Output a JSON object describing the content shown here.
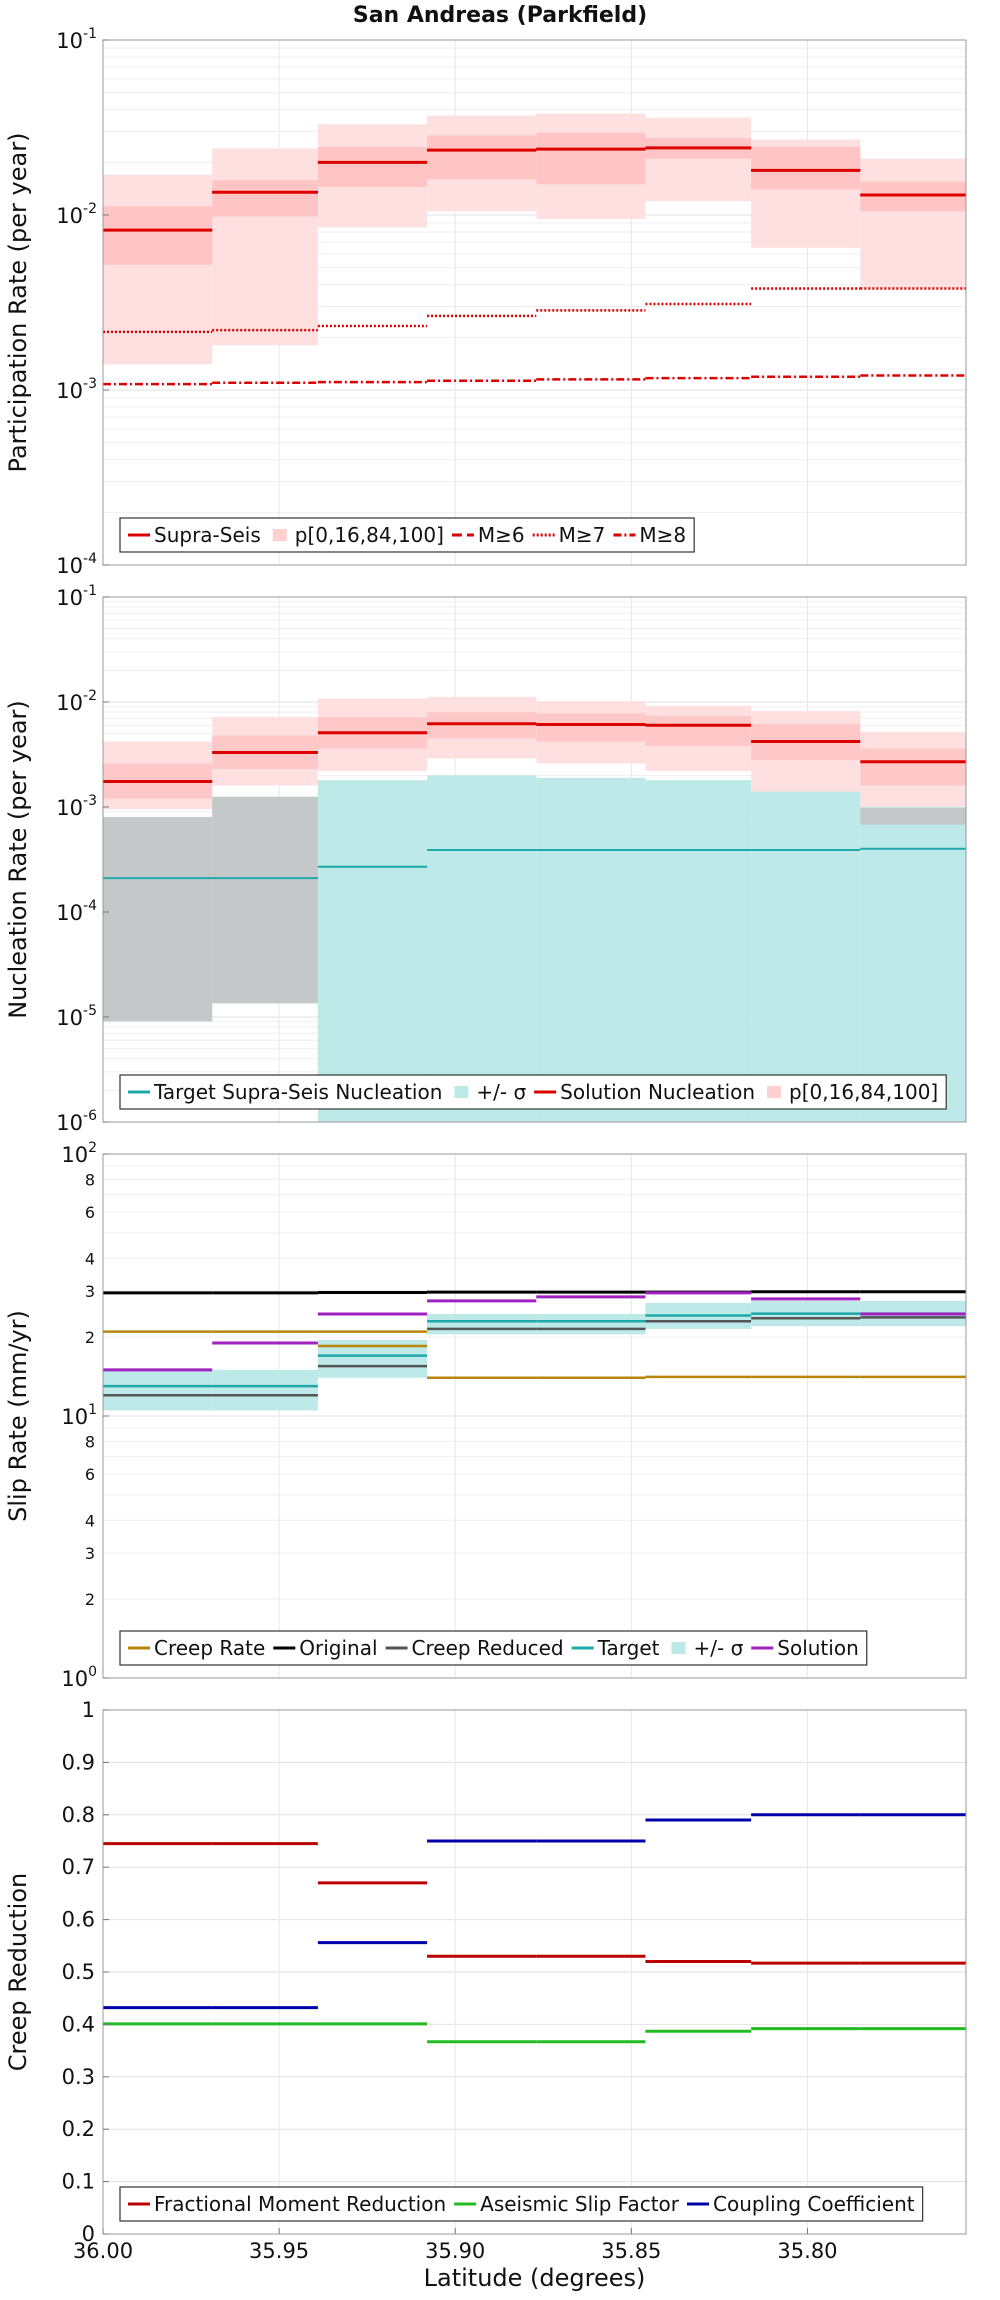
{
  "figure_title": "San Andreas (Parkfield)",
  "chart_data": [
    {
      "type": "step-line",
      "ylabel": "Participation Rate (per year)",
      "yscale": "log",
      "ylim": [
        0.0001,
        0.1
      ],
      "ytick_labels": [
        {
          "base": "10",
          "exp": "-1"
        },
        {
          "base": "10",
          "exp": "-2"
        },
        {
          "base": "10",
          "exp": "-3"
        },
        {
          "base": "10",
          "exp": "-4"
        }
      ],
      "xlim": [
        36.0,
        35.755
      ],
      "x_edges": [
        36.0,
        35.969,
        35.939,
        35.908,
        35.877,
        35.846,
        35.816,
        35.785,
        35.755
      ],
      "bands": [
        {
          "name": "p0-100",
          "color": "#ffe0e0",
          "lo": [
            0.0014,
            0.0018,
            0.0085,
            0.0105,
            0.0095,
            0.012,
            0.0065,
            0.0038
          ],
          "hi": [
            0.017,
            0.024,
            0.033,
            0.037,
            0.038,
            0.036,
            0.027,
            0.021
          ]
        },
        {
          "name": "p16-84",
          "color": "#ffc4c4",
          "lo": [
            0.0052,
            0.0098,
            0.0145,
            0.016,
            0.015,
            0.021,
            0.014,
            0.0105
          ],
          "hi": [
            0.0112,
            0.0158,
            0.0245,
            0.0285,
            0.0295,
            0.0275,
            0.0245,
            0.0155
          ]
        }
      ],
      "series": [
        {
          "name": "Supra-Seis",
          "color": "#dd0000",
          "dash": "",
          "width": 3,
          "values": [
            0.0082,
            0.0135,
            0.02,
            0.0235,
            0.0238,
            0.0242,
            0.018,
            0.013
          ]
        },
        {
          "name": "M≥6",
          "color": "#dd0000",
          "dash": "10,5",
          "width": 2,
          "values": [
            0.0082,
            0.0135,
            0.02,
            0.0235,
            0.0238,
            0.0242,
            0.018,
            0.013
          ]
        },
        {
          "name": "M≥7",
          "color": "#dd0000",
          "dash": "2,2",
          "width": 2.5,
          "values": [
            0.00215,
            0.0022,
            0.00232,
            0.00265,
            0.00285,
            0.0031,
            0.0038,
            0.0038
          ]
        },
        {
          "name": "M≥8",
          "color": "#dd0000",
          "dash": "8,3,2,3",
          "width": 2.5,
          "values": [
            0.00108,
            0.0011,
            0.00111,
            0.00113,
            0.00115,
            0.00117,
            0.00119,
            0.00121
          ]
        }
      ],
      "legend": [
        {
          "label": "Supra-Seis",
          "kind": "line",
          "color": "#dd0000",
          "dash": ""
        },
        {
          "label": "p[0,16,84,100]",
          "kind": "box",
          "color": "#ffd0d0",
          "dash": ""
        },
        {
          "label": "M≥6",
          "kind": "line",
          "color": "#dd0000",
          "dash": "10,5"
        },
        {
          "label": "M≥7",
          "kind": "line",
          "color": "#dd0000",
          "dash": "2,2"
        },
        {
          "label": "M≥8",
          "kind": "line",
          "color": "#dd0000",
          "dash": "8,3,2,3"
        }
      ]
    },
    {
      "type": "step-line",
      "ylabel": "Nucleation Rate (per year)",
      "yscale": "log",
      "ylim": [
        1e-06,
        0.1
      ],
      "ytick_labels": [
        {
          "base": "10",
          "exp": "-1"
        },
        {
          "base": "10",
          "exp": "-2"
        },
        {
          "base": "10",
          "exp": "-3"
        },
        {
          "base": "10",
          "exp": "-4"
        },
        {
          "base": "10",
          "exp": "-5"
        },
        {
          "base": "10",
          "exp": "-6"
        }
      ],
      "xlim": [
        36.0,
        35.755
      ],
      "x_edges": [
        36.0,
        35.969,
        35.939,
        35.908,
        35.877,
        35.846,
        35.816,
        35.785,
        35.755
      ],
      "bands": [
        {
          "name": "p0-100",
          "color": "#ffe0e0",
          "lo": [
            0.00095,
            0.0016,
            0.0022,
            0.0029,
            0.0026,
            0.0022,
            0.0012,
            0.0007
          ],
          "hi": [
            0.0042,
            0.0072,
            0.0108,
            0.0112,
            0.0102,
            0.0092,
            0.0082,
            0.0052
          ]
        },
        {
          "name": "p16-84",
          "color": "#ffc8c8",
          "lo": [
            0.0012,
            0.0023,
            0.0036,
            0.0045,
            0.0042,
            0.0038,
            0.0028,
            0.0016
          ],
          "hi": [
            0.0026,
            0.0048,
            0.0072,
            0.008,
            0.0078,
            0.0074,
            0.0062,
            0.0036
          ]
        },
        {
          "name": "+/- σ",
          "color": "#bde9e9",
          "lo": [
            9.1e-06,
            1.35e-05,
            1e-06,
            1e-06,
            1e-06,
            1e-06,
            1e-06,
            1e-06
          ],
          "hi": [
            0.0008,
            0.00125,
            0.0018,
            0.002,
            0.0019,
            0.0018,
            0.0014,
            0.001
          ]
        },
        {
          "name": "grey",
          "color": "#c4c8c8",
          "lo": [
            9.1e-06,
            1.35e-05,
            0.0018,
            0.002,
            0.0019,
            0.0018,
            0.0014,
            0.00068
          ],
          "hi": [
            0.0008,
            0.00125,
            0.0018,
            0.002,
            0.0019,
            0.0018,
            0.0014,
            0.00098
          ]
        }
      ],
      "series": [
        {
          "name": "Target Supra-Seis Nucleation",
          "color": "#1fa8a8",
          "dash": "",
          "width": 2,
          "values": [
            0.00021,
            0.00021,
            0.00027,
            0.00039,
            0.00039,
            0.00039,
            0.00039,
            0.0004
          ]
        },
        {
          "name": "Solution Nucleation",
          "color": "#dd0000",
          "dash": "",
          "width": 3,
          "values": [
            0.00175,
            0.0033,
            0.0051,
            0.0062,
            0.0061,
            0.006,
            0.0042,
            0.0027
          ]
        }
      ],
      "legend": [
        {
          "label": "Target Supra-Seis Nucleation",
          "kind": "line",
          "color": "#1fa8a8",
          "dash": ""
        },
        {
          "label": "+/- σ",
          "kind": "box",
          "color": "#bde9e9",
          "dash": ""
        },
        {
          "label": "Solution Nucleation",
          "kind": "line",
          "color": "#dd0000",
          "dash": ""
        },
        {
          "label": "p[0,16,84,100]",
          "kind": "box",
          "color": "#ffd0d0",
          "dash": ""
        }
      ]
    },
    {
      "type": "step-line",
      "ylabel": "Slip Rate (mm/yr)",
      "yscale": "log",
      "ylim": [
        1,
        100
      ],
      "ytick_labels": [
        {
          "base": "10",
          "exp": "2"
        },
        {
          "base": "10",
          "exp": "1"
        },
        {
          "base": "10",
          "exp": "0"
        }
      ],
      "minor_tick_labels": [
        {
          "value": 80,
          "label": "8"
        },
        {
          "value": 60,
          "label": "6"
        },
        {
          "value": 40,
          "label": "4"
        },
        {
          "value": 30,
          "label": "3"
        },
        {
          "value": 20,
          "label": "2"
        },
        {
          "value": 8,
          "label": "8"
        },
        {
          "value": 6,
          "label": "6"
        },
        {
          "value": 4,
          "label": "4"
        },
        {
          "value": 3,
          "label": "3"
        },
        {
          "value": 2,
          "label": "2"
        }
      ],
      "xlim": [
        36.0,
        35.755
      ],
      "x_edges": [
        36.0,
        35.969,
        35.939,
        35.908,
        35.877,
        35.846,
        35.816,
        35.785,
        35.755
      ],
      "bands": [
        {
          "name": "+/- σ",
          "color": "#bde9e9",
          "lo": [
            10.5,
            10.5,
            14.0,
            20.5,
            20.5,
            21.5,
            22.0,
            22.0
          ],
          "hi": [
            15.0,
            15.0,
            19.5,
            24.5,
            24.5,
            27.0,
            27.5,
            27.5
          ]
        }
      ],
      "series": [
        {
          "name": "Creep Rate",
          "color": "#b8860b",
          "dash": "",
          "width": 2.5,
          "values": [
            21.0,
            21.0,
            21.0,
            14.0,
            14.0,
            14.1,
            14.1,
            14.1
          ]
        },
        {
          "name": "Original",
          "color": "#000000",
          "dash": "",
          "width": 3,
          "values": [
            29.5,
            29.5,
            29.6,
            29.7,
            29.7,
            29.7,
            29.8,
            29.8
          ]
        },
        {
          "name": "Creep Reduced",
          "color": "#555555",
          "dash": "",
          "width": 2.5,
          "values": [
            12.0,
            12.0,
            15.5,
            21.5,
            21.5,
            23.0,
            23.6,
            23.8
          ]
        },
        {
          "name": "Target",
          "color": "#1fa8a8",
          "dash": "",
          "width": 2.5,
          "values": [
            13.0,
            13.0,
            17.0,
            23.0,
            23.0,
            24.2,
            24.6,
            24.6
          ]
        },
        {
          "name": "Solution",
          "color": "#a020c0",
          "dash": "",
          "width": 3,
          "values": [
            15.0,
            19.0,
            24.5,
            27.5,
            28.5,
            29.5,
            28.0,
            24.5
          ]
        },
        {
          "name": "Orange2",
          "color": "#b8860b",
          "dash": "",
          "width": 2.5,
          "values": [
            null,
            null,
            18.5,
            null,
            null,
            null,
            null,
            null
          ]
        }
      ],
      "legend": [
        {
          "label": "Creep Rate",
          "kind": "line",
          "color": "#b8860b",
          "dash": ""
        },
        {
          "label": "Original",
          "kind": "line",
          "color": "#000000",
          "dash": ""
        },
        {
          "label": "Creep Reduced",
          "kind": "line",
          "color": "#555555",
          "dash": ""
        },
        {
          "label": "Target",
          "kind": "line",
          "color": "#1fa8a8",
          "dash": ""
        },
        {
          "label": "+/- σ",
          "kind": "box",
          "color": "#bde9e9",
          "dash": ""
        },
        {
          "label": "Solution",
          "kind": "line",
          "color": "#a020c0",
          "dash": ""
        }
      ]
    },
    {
      "type": "step-line",
      "ylabel": "Creep Reduction",
      "yscale": "linear",
      "ylim": [
        0,
        1
      ],
      "ytick_values": [
        0,
        0.1,
        0.2,
        0.3,
        0.4,
        0.5,
        0.6,
        0.7,
        0.8,
        0.9,
        1
      ],
      "ytick_labels_text": [
        "0",
        "0.1",
        "0.2",
        "0.3",
        "0.4",
        "0.5",
        "0.6",
        "0.7",
        "0.8",
        "0.9",
        "1"
      ],
      "xlim": [
        36.0,
        35.755
      ],
      "x_edges": [
        36.0,
        35.969,
        35.939,
        35.908,
        35.877,
        35.846,
        35.816,
        35.785,
        35.755
      ],
      "xlabel": "Latitude (degrees)",
      "xtick_values": [
        36.0,
        35.95,
        35.9,
        35.85,
        35.8
      ],
      "xtick_labels": [
        "36.00",
        "35.95",
        "35.90",
        "35.85",
        "35.80"
      ],
      "bands": [],
      "series": [
        {
          "name": "Fractional Moment Reduction",
          "color": "#bb0000",
          "dash": "",
          "width": 3,
          "values": [
            0.745,
            0.745,
            0.67,
            0.53,
            0.53,
            0.52,
            0.517,
            0.517
          ]
        },
        {
          "name": "Aseismic Slip Factor",
          "color": "#22bb22",
          "dash": "",
          "width": 3,
          "values": [
            0.401,
            0.401,
            0.401,
            0.367,
            0.367,
            0.387,
            0.392,
            0.392
          ]
        },
        {
          "name": "Coupling Coefficient",
          "color": "#0000aa",
          "dash": "",
          "width": 3,
          "values": [
            0.432,
            0.432,
            0.556,
            0.75,
            0.75,
            0.79,
            0.8,
            0.8
          ]
        }
      ],
      "legend": [
        {
          "label": "Fractional Moment Reduction",
          "kind": "line",
          "color": "#bb0000",
          "dash": ""
        },
        {
          "label": "Aseismic Slip Factor",
          "kind": "line",
          "color": "#22bb22",
          "dash": ""
        },
        {
          "label": "Coupling Coefficient",
          "kind": "line",
          "color": "#0000aa",
          "dash": ""
        }
      ]
    }
  ]
}
